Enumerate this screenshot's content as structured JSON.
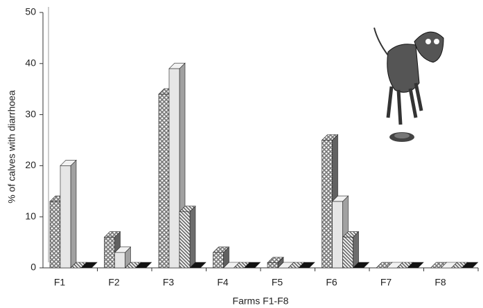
{
  "chart_data": {
    "type": "bar3d",
    "x_label": "Farms F1-F8",
    "y_label": "% of calves with diarrhoea",
    "categories": [
      "F1",
      "F2",
      "F3",
      "F4",
      "F5",
      "F6",
      "F7",
      "F8"
    ],
    "series": [
      {
        "color": "#8a8a8a",
        "pattern": "crosshatch",
        "values": [
          13,
          6,
          34,
          3,
          1,
          25,
          0,
          0
        ]
      },
      {
        "color": "#e6e6e6",
        "pattern": "solid",
        "values": [
          20,
          3,
          39,
          0,
          0,
          13,
          0,
          0
        ]
      },
      {
        "color": "#9a9a9a",
        "pattern": "diagonal",
        "values": [
          0,
          0,
          11,
          0,
          0,
          6,
          0,
          0
        ]
      },
      {
        "color": "#111111",
        "pattern": "solid",
        "values": [
          0,
          0,
          0,
          0,
          0,
          0,
          0,
          0
        ]
      }
    ],
    "ylim": [
      0,
      50
    ],
    "yticks": [
      0,
      10,
      20,
      30,
      40,
      50
    ]
  }
}
